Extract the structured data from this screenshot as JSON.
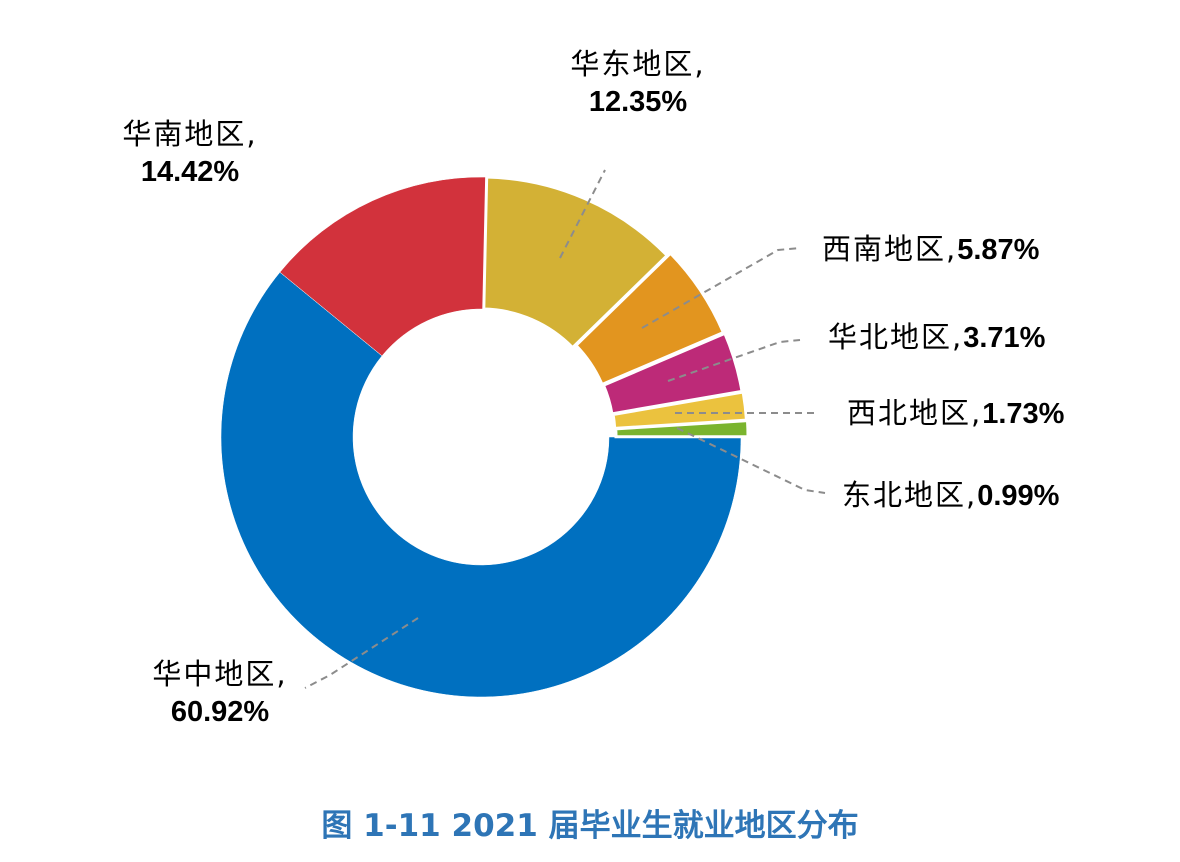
{
  "chart_data": {
    "type": "pie",
    "variant": "donut",
    "title": "图 1-11 2021 届毕业生就业地区分布",
    "categories": [
      "华中地区",
      "华南地区",
      "华东地区",
      "西南地区",
      "华北地区",
      "西北地区",
      "东北地区"
    ],
    "values": [
      60.92,
      14.42,
      12.35,
      5.87,
      3.71,
      1.73,
      0.99
    ],
    "value_labels": [
      "60.92%",
      "14.42%",
      "12.35%",
      "5.87%",
      "3.71%",
      "1.73%",
      "0.99%"
    ],
    "colors": [
      "#0070c0",
      "#d2323c",
      "#d3b135",
      "#e2951f",
      "#bd2a78",
      "#ebc23e",
      "#7ab42e"
    ],
    "unit": "%",
    "start_angle_deg": 0,
    "direction": "clockwise",
    "legend": "none",
    "data_labels": "outside with dashed leader lines"
  },
  "labels": [
    {
      "name": "华中地区,",
      "pct": "60.92%"
    },
    {
      "name": "华南地区,",
      "pct": "14.42%"
    },
    {
      "name": "华东地区,",
      "pct": "12.35%"
    },
    {
      "name": "西南地区,",
      "pct": "5.87%"
    },
    {
      "name": "华北地区,",
      "pct": "3.71%"
    },
    {
      "name": "西北地区,",
      "pct": "1.73%"
    },
    {
      "name": "东北地区,",
      "pct": "0.99%"
    }
  ],
  "caption": "图 1-11 2021 届毕业生就业地区分布"
}
